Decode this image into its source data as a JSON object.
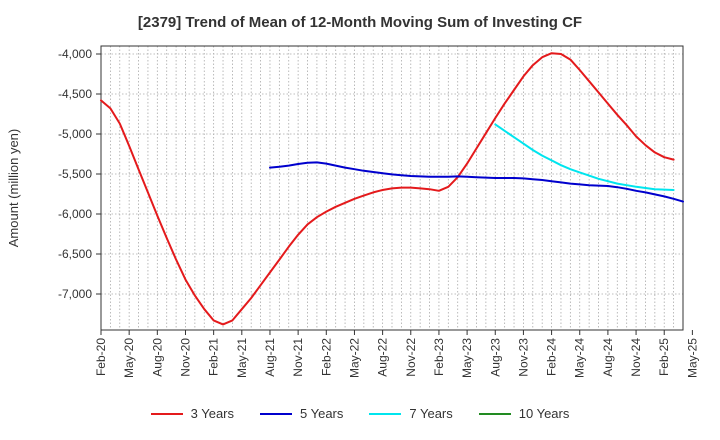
{
  "chart_data": {
    "type": "line",
    "title": "[2379]  Trend of Mean of 12-Month Moving Sum of Investing CF",
    "ylabel": "Amount (million yen)",
    "xlabel": "",
    "ylim": [
      -7450,
      -3900
    ],
    "yticks": [
      -4000,
      -4500,
      -5000,
      -5500,
      -6000,
      -6500,
      -7000
    ],
    "ytick_labels": [
      "-4,000",
      "-4,500",
      "-5,000",
      "-5,500",
      "-6,000",
      "-6,500",
      "-7,000"
    ],
    "x_start": "Feb-20",
    "x_months": 63,
    "x_tick_labels": [
      "Feb-20",
      "May-20",
      "Aug-20",
      "Nov-20",
      "Feb-21",
      "May-21",
      "Aug-21",
      "Nov-21",
      "Feb-22",
      "May-22",
      "Aug-22",
      "Nov-22",
      "Feb-23",
      "May-23",
      "Aug-23",
      "Nov-23",
      "Feb-24",
      "May-24",
      "Aug-24",
      "Nov-24",
      "Feb-25",
      "May-25"
    ],
    "grid": true,
    "legend_position": "bottom",
    "series": [
      {
        "name": "3 Years",
        "color": "#e41a1c",
        "start_index": 0,
        "values": [
          -4580,
          -4680,
          -4870,
          -5150,
          -5440,
          -5730,
          -6020,
          -6300,
          -6570,
          -6820,
          -7020,
          -7190,
          -7330,
          -7380,
          -7330,
          -7190,
          -7050,
          -6890,
          -6730,
          -6570,
          -6410,
          -6260,
          -6130,
          -6040,
          -5970,
          -5910,
          -5860,
          -5810,
          -5770,
          -5730,
          -5700,
          -5680,
          -5670,
          -5670,
          -5680,
          -5690,
          -5710,
          -5660,
          -5540,
          -5370,
          -5180,
          -4990,
          -4800,
          -4620,
          -4450,
          -4280,
          -4140,
          -4040,
          -3990,
          -4000,
          -4070,
          -4200,
          -4340,
          -4480,
          -4620,
          -4760,
          -4890,
          -5030,
          -5140,
          -5230,
          -5290,
          -5320
        ]
      },
      {
        "name": "5 Years",
        "color": "#0000cd",
        "start_index": 18,
        "values": [
          -5420,
          -5410,
          -5395,
          -5375,
          -5360,
          -5355,
          -5370,
          -5395,
          -5420,
          -5440,
          -5460,
          -5475,
          -5490,
          -5505,
          -5515,
          -5525,
          -5530,
          -5535,
          -5535,
          -5535,
          -5530,
          -5535,
          -5540,
          -5545,
          -5550,
          -5550,
          -5550,
          -5555,
          -5565,
          -5575,
          -5590,
          -5605,
          -5620,
          -5630,
          -5640,
          -5645,
          -5650,
          -5665,
          -5685,
          -5710,
          -5730,
          -5755,
          -5780,
          -5810,
          -5845
        ]
      },
      {
        "name": "7 Years",
        "color": "#00e5ee",
        "start_index": 42,
        "values": [
          -4880,
          -4960,
          -5040,
          -5120,
          -5200,
          -5270,
          -5330,
          -5390,
          -5440,
          -5480,
          -5520,
          -5560,
          -5590,
          -5620,
          -5640,
          -5660,
          -5675,
          -5690,
          -5695,
          -5700
        ]
      },
      {
        "name": "10 Years",
        "color": "#228b22",
        "start_index": 0,
        "values": []
      }
    ]
  }
}
